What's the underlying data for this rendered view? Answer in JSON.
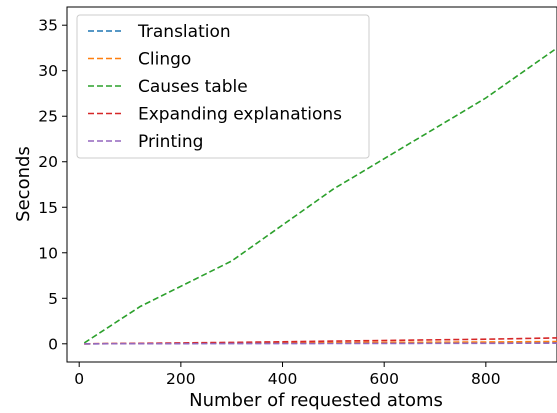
{
  "chart_data": {
    "type": "line",
    "xlabel": "Number of requested atoms",
    "ylabel": "Seconds",
    "xlim": [
      -24,
      940
    ],
    "ylim": [
      -2,
      37
    ],
    "xticks": [
      0,
      200,
      400,
      600,
      800
    ],
    "yticks": [
      0,
      5,
      10,
      15,
      20,
      25,
      30,
      35
    ],
    "grid": false,
    "legend_position": "upper-left",
    "line_style": "dashed",
    "series": [
      {
        "name": "Translation",
        "color": "#1f77b4",
        "x": [
          10,
          120,
          300,
          500,
          800,
          940
        ],
        "y": [
          0,
          0.02,
          0.05,
          0.08,
          0.12,
          0.15
        ]
      },
      {
        "name": "Clingo",
        "color": "#ff7f0e",
        "x": [
          10,
          120,
          300,
          500,
          800,
          940
        ],
        "y": [
          0,
          0.03,
          0.08,
          0.13,
          0.2,
          0.25
        ]
      },
      {
        "name": "Causes table",
        "color": "#2ca02c",
        "x": [
          10,
          120,
          300,
          500,
          800,
          940
        ],
        "y": [
          0.1,
          4.1,
          9.1,
          17.0,
          27.0,
          32.5
        ]
      },
      {
        "name": "Expanding explanations",
        "color": "#d62728",
        "x": [
          10,
          120,
          300,
          500,
          800,
          940
        ],
        "y": [
          0,
          0.05,
          0.15,
          0.3,
          0.5,
          0.65
        ]
      },
      {
        "name": "Printing",
        "color": "#9467bd",
        "x": [
          10,
          120,
          300,
          500,
          800,
          940
        ],
        "y": [
          0,
          0.01,
          0.02,
          0.03,
          0.05,
          0.06
        ]
      }
    ]
  }
}
